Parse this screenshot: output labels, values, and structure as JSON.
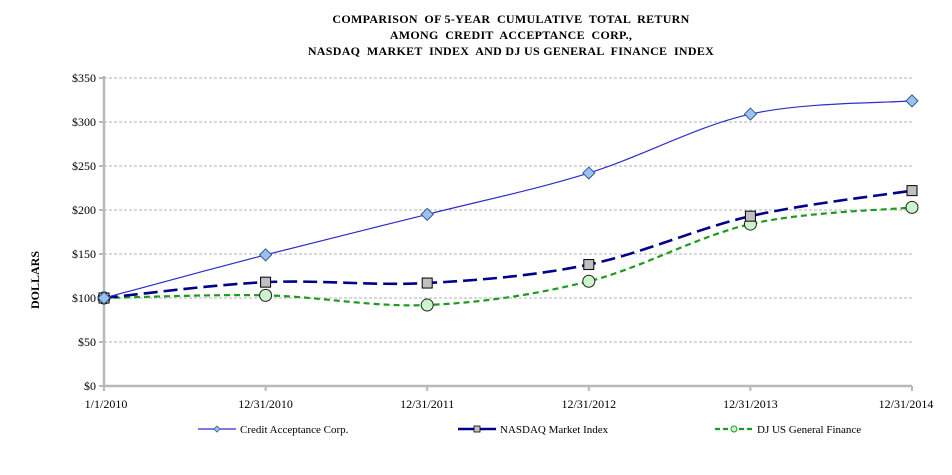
{
  "chart_data": {
    "type": "line",
    "title": [
      "COMPARISON  OF 5-YEAR  CUMULATIVE  TOTAL  RETURN",
      "AMONG  CREDIT  ACCEPTANCE  CORP.,",
      "NASDAQ  MARKET  INDEX  AND DJ US GENERAL  FINANCE  INDEX"
    ],
    "xlabel": "",
    "ylabel": "DOLLARS",
    "categories": [
      "1/1/2010",
      "12/31/2010",
      "12/31/2011",
      "12/31/2012",
      "12/31/2013",
      "12/31/2014"
    ],
    "ylim": [
      0,
      350
    ],
    "yticks": [
      0,
      50,
      100,
      150,
      200,
      250,
      300,
      350
    ],
    "ytick_labels": [
      "$0",
      "$50",
      "$100",
      "$150",
      "$200",
      "$250",
      "$300",
      "$350"
    ],
    "grid": "horizontal dashed",
    "legend_position": "bottom",
    "series": [
      {
        "name": "Credit Acceptance Corp.",
        "values": [
          100,
          149,
          195,
          242,
          309,
          324
        ],
        "color": "#2f2fc8",
        "marker": "diamond",
        "marker_fill": "#99c2f2",
        "line": "solid"
      },
      {
        "name": "NASDAQ Market Index",
        "values": [
          100,
          118,
          117,
          138,
          193,
          222
        ],
        "color": "#00008b",
        "marker": "square",
        "marker_fill": "#c0c0c0",
        "line": "long-dash"
      },
      {
        "name": "DJ US  General Finance",
        "values": [
          100,
          103,
          92,
          119,
          184,
          203
        ],
        "color": "#1f9a1f",
        "marker": "circle",
        "marker_fill": "#ccf5cc",
        "line": "short-dash"
      }
    ]
  }
}
